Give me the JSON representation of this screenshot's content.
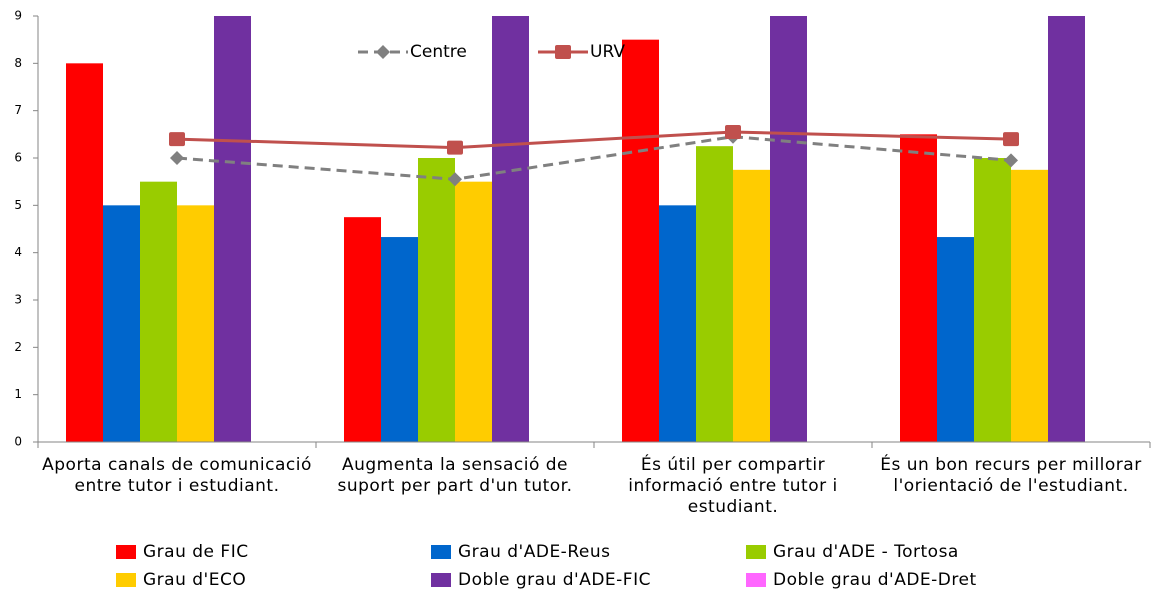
{
  "chart_data": {
    "type": "bar",
    "categories": [
      "Aporta canals de comunicació entre tutor i estudiant.",
      "Augmenta la sensació de suport per part d'un tutor.",
      "És útil per compartir informació entre tutor i estudiant.",
      "És un bon recurs per millorar l'orientació de l'estudiant."
    ],
    "series": [
      {
        "name": "Grau de FIC",
        "color": "#ff0000",
        "values": [
          8,
          4.75,
          8.5,
          6.5
        ]
      },
      {
        "name": "Grau d'ADE-Reus",
        "color": "#0066cc",
        "values": [
          5,
          4.33,
          5,
          4.33
        ]
      },
      {
        "name": "Grau d'ADE - Tortosa",
        "color": "#99cc00",
        "values": [
          5.5,
          6,
          6.25,
          6
        ]
      },
      {
        "name": "Grau d'ECO",
        "color": "#ffcc00",
        "values": [
          5,
          5.5,
          5.75,
          5.75
        ]
      },
      {
        "name": "Doble grau d'ADE-FIC",
        "color": "#7030a0",
        "values": [
          9,
          9,
          9,
          9
        ]
      },
      {
        "name": "Doble grau d'ADE-Dret",
        "color": "#ff66ff",
        "values": [
          null,
          null,
          null,
          null
        ]
      },
      {
        "name": "Centre",
        "type": "line",
        "color": "#808080",
        "dashed": true,
        "marker": "diamond",
        "values": [
          6,
          5.55,
          6.45,
          5.95
        ]
      },
      {
        "name": "URV",
        "type": "line",
        "color": "#c0504d",
        "dashed": false,
        "marker": "square",
        "values": [
          6.4,
          6.22,
          6.55,
          6.4
        ]
      }
    ],
    "ylim": [
      0,
      9
    ],
    "yticks": [
      0,
      1,
      2,
      3,
      4,
      5,
      6,
      7,
      8,
      9
    ],
    "grid": false
  }
}
